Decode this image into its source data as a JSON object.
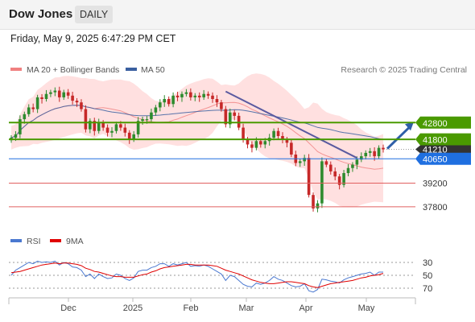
{
  "header": {
    "title": "Dow Jones",
    "timeframe": "DAILY"
  },
  "subtitle": "Friday, May 9, 2025 6:47:29 PM CET",
  "legend": {
    "ma20_bb": "MA 20 + Bollinger Bands",
    "ma50": "MA 50",
    "credit": "Research © 2025 Trading Central",
    "rsi": "RSI",
    "ma9": "9MA"
  },
  "colors": {
    "green_level": "#4a9a00",
    "blue_level": "#1f6fe0",
    "red_level": "#e06060",
    "last_price": "#333333",
    "up_candle": "#2e8b2e",
    "down_candle": "#c62828",
    "bollinger": "#ffc7c7",
    "ma20": "#f08080",
    "ma50": "#3a5fa0",
    "rsi": "#4a78d0",
    "rsi_ma9": "#e00000",
    "trendline": "#5a5aa0",
    "arrow": "#2f5fa8"
  },
  "chart_data": [
    {
      "type": "candlestick",
      "title": "Dow Jones",
      "timeframe": "DAILY",
      "x_ticks": [
        "Dec",
        "2025",
        "Feb",
        "Mar",
        "Apr",
        "May"
      ],
      "price_levels": [
        {
          "value": 42800,
          "label": "42800",
          "kind": "resistance",
          "color": "#4a9a00"
        },
        {
          "value": 41800,
          "label": "41800",
          "kind": "resistance",
          "color": "#4a9a00"
        },
        {
          "value": 41210,
          "label": "41210",
          "kind": "last",
          "color": "#333333"
        },
        {
          "value": 40650,
          "label": "40650",
          "kind": "pivot",
          "color": "#1f6fe0"
        },
        {
          "value": 39200,
          "label": "39200",
          "kind": "support",
          "color": "#e06060"
        },
        {
          "value": 37800,
          "label": "37800",
          "kind": "support",
          "color": "#e06060"
        }
      ],
      "ylim": [
        36500,
        45300
      ],
      "series": [
        {
          "name": "MA 20 + Bollinger Bands"
        },
        {
          "name": "MA 50"
        }
      ],
      "close": [
        41900,
        42100,
        43000,
        43300,
        43700,
        43600,
        44300,
        44200,
        44500,
        44600,
        44700,
        44300,
        44600,
        44400,
        44100,
        44000,
        43600,
        42400,
        42900,
        42300,
        42800,
        42500,
        42200,
        42300,
        42700,
        42500,
        42200,
        41800,
        42100,
        42900,
        43000,
        43000,
        43400,
        43700,
        44000,
        44200,
        43900,
        44400,
        44300,
        44500,
        44600,
        44300,
        44400,
        44300,
        44500,
        44400,
        44200,
        44000,
        43600,
        42700,
        43400,
        43200,
        42500,
        41800,
        41500,
        41300,
        41700,
        41500,
        41700,
        41900,
        42300,
        42000,
        41800,
        41600,
        40900,
        40400,
        40500,
        40700,
        38500,
        37700,
        38000,
        40500,
        40300,
        39900,
        39600,
        39100,
        39800,
        40100,
        40300,
        40600,
        40800,
        41000,
        41100,
        40800,
        41300,
        41210
      ],
      "rsi": {
        "name": "RSI",
        "ticks": [
          30,
          50,
          70
        ],
        "ylim": [
          20,
          80
        ],
        "values": [
          50,
          58,
          62,
          66,
          70,
          68,
          72,
          70,
          71,
          70,
          72,
          66,
          70,
          68,
          63,
          62,
          58,
          48,
          52,
          45,
          52,
          48,
          45,
          46,
          52,
          50,
          45,
          42,
          46,
          56,
          58,
          58,
          62,
          64,
          68,
          68,
          64,
          68,
          66,
          68,
          70,
          64,
          65,
          64,
          66,
          64,
          60,
          56,
          52,
          42,
          50,
          48,
          42,
          36,
          33,
          32,
          38,
          36,
          38,
          42,
          48,
          44,
          42,
          38,
          34,
          32,
          33,
          37,
          26,
          24,
          28,
          44,
          43,
          41,
          40,
          38,
          43,
          46,
          48,
          50,
          52,
          53,
          55,
          50,
          55,
          55
        ]
      },
      "rsi_ma9": {
        "name": "9MA",
        "values": [
          54,
          55,
          56,
          58,
          60,
          62,
          64,
          66,
          67,
          68,
          69,
          68,
          69,
          69,
          68,
          67,
          65,
          61,
          59,
          56,
          55,
          53,
          51,
          49,
          48,
          48,
          47,
          47,
          47,
          49,
          51,
          52,
          55,
          57,
          60,
          62,
          63,
          64,
          65,
          66,
          67,
          67,
          66,
          66,
          66,
          66,
          65,
          64,
          61,
          58,
          56,
          54,
          52,
          49,
          46,
          43,
          41,
          39,
          38,
          37,
          37,
          38,
          39,
          40,
          40,
          39,
          38,
          37,
          34,
          32,
          31,
          33,
          35,
          37,
          38,
          39,
          40,
          41,
          42,
          44,
          46,
          47,
          49,
          50,
          51,
          53
        ]
      }
    }
  ],
  "y_tags": [
    "70",
    "50",
    "30"
  ]
}
